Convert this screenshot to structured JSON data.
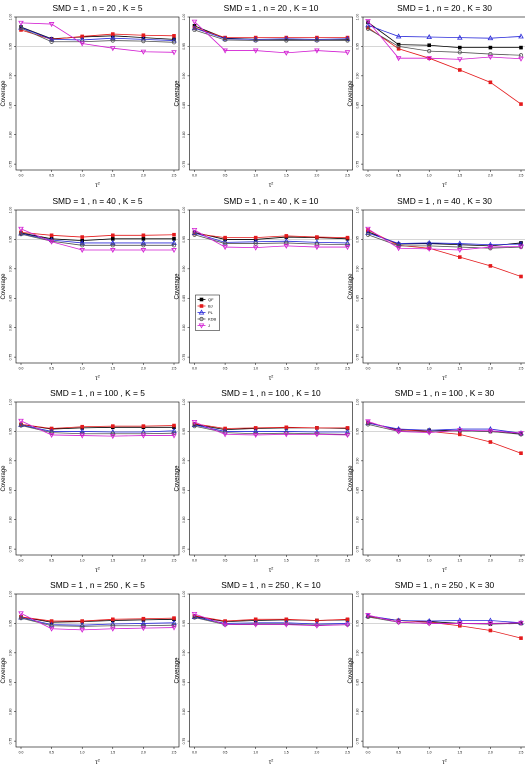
{
  "chart_data": {
    "type": "line",
    "x": [
      0.0,
      0.5,
      1.0,
      1.5,
      2.0,
      2.5
    ],
    "x_tick_labels": [
      "0.0",
      "0.5",
      "1.0",
      "1.5",
      "2.0",
      "2.5"
    ],
    "y_ticks": [
      0.75,
      0.8,
      0.85,
      0.9,
      0.95,
      1.0
    ],
    "y_tick_labels": [
      "0.75",
      "0.80",
      "0.85",
      "0.90",
      "0.95",
      "1.00"
    ],
    "ylim": [
      0.74,
      1.0
    ],
    "xlabel": "τ",
    "xlabel_sup": "2",
    "ylabel": "Coverage",
    "reference_line": 0.95,
    "legend": {
      "panel": 4,
      "entries": [
        {
          "label": "QF",
          "color": "#000000",
          "marker": "square"
        },
        {
          "label": "BJ",
          "color": "#e41a1c",
          "marker": "square"
        },
        {
          "label": "PL",
          "color": "#2b2bd9",
          "marker": "triangle-up"
        },
        {
          "label": "KDB",
          "color": "#555555",
          "marker": "circle"
        },
        {
          "label": "J",
          "color": "#d21fd2",
          "marker": "triangle-down"
        }
      ]
    },
    "panels": [
      {
        "title": "SMD = 1 , n = 20 , K = 5",
        "series": [
          {
            "name": "QF",
            "values": [
              0.983,
              0.963,
              0.966,
              0.968,
              0.965,
              0.962
            ]
          },
          {
            "name": "BJ",
            "values": [
              0.978,
              0.962,
              0.967,
              0.971,
              0.969,
              0.968
            ]
          },
          {
            "name": "PL",
            "values": [
              0.982,
              0.962,
              0.961,
              0.964,
              0.962,
              0.96
            ]
          },
          {
            "name": "KDB",
            "values": [
              0.981,
              0.958,
              0.958,
              0.96,
              0.959,
              0.957
            ]
          },
          {
            "name": "J",
            "values": [
              0.99,
              0.988,
              0.955,
              0.947,
              0.941,
              0.94
            ]
          }
        ]
      },
      {
        "title": "SMD = 1 , n = 20 , K = 10",
        "series": [
          {
            "name": "QF",
            "values": [
              0.985,
              0.964,
              0.962,
              0.962,
              0.962,
              0.962
            ]
          },
          {
            "name": "BJ",
            "values": [
              0.982,
              0.965,
              0.965,
              0.965,
              0.965,
              0.965
            ]
          },
          {
            "name": "PL",
            "values": [
              0.981,
              0.963,
              0.962,
              0.963,
              0.962,
              0.963
            ]
          },
          {
            "name": "KDB",
            "values": [
              0.978,
              0.961,
              0.96,
              0.96,
              0.96,
              0.96
            ]
          },
          {
            "name": "J",
            "values": [
              0.992,
              0.943,
              0.943,
              0.939,
              0.943,
              0.94
            ]
          }
        ]
      },
      {
        "title": "SMD = 1 , n = 20 , K = 30",
        "series": [
          {
            "name": "QF",
            "values": [
              0.991,
              0.953,
              0.952,
              0.948,
              0.948,
              0.948
            ]
          },
          {
            "name": "BJ",
            "values": [
              0.982,
              0.946,
              0.93,
              0.91,
              0.889,
              0.852
            ]
          },
          {
            "name": "PL",
            "values": [
              0.986,
              0.967,
              0.966,
              0.965,
              0.964,
              0.967
            ]
          },
          {
            "name": "KDB",
            "values": [
              0.98,
              0.95,
              0.942,
              0.94,
              0.937,
              0.935
            ]
          },
          {
            "name": "J",
            "values": [
              0.993,
              0.93,
              0.93,
              0.928,
              0.932,
              0.929
            ]
          }
        ]
      },
      {
        "title": "SMD = 1 , n = 40 , K = 5",
        "series": [
          {
            "name": "QF",
            "values": [
              0.961,
              0.951,
              0.948,
              0.951,
              0.951,
              0.951
            ]
          },
          {
            "name": "BJ",
            "values": [
              0.962,
              0.957,
              0.954,
              0.957,
              0.957,
              0.958
            ]
          },
          {
            "name": "PL",
            "values": [
              0.96,
              0.949,
              0.944,
              0.944,
              0.944,
              0.944
            ]
          },
          {
            "name": "KDB",
            "values": [
              0.959,
              0.947,
              0.94,
              0.94,
              0.94,
              0.94
            ]
          },
          {
            "name": "J",
            "values": [
              0.968,
              0.946,
              0.932,
              0.932,
              0.932,
              0.932
            ]
          }
        ]
      },
      {
        "title": "SMD = 1 , n = 40 , K = 10",
        "series": [
          {
            "name": "QF",
            "values": [
              0.962,
              0.95,
              0.95,
              0.954,
              0.953,
              0.951
            ]
          },
          {
            "name": "BJ",
            "values": [
              0.96,
              0.953,
              0.953,
              0.956,
              0.954,
              0.953
            ]
          },
          {
            "name": "PL",
            "values": [
              0.961,
              0.945,
              0.946,
              0.947,
              0.945,
              0.944
            ]
          },
          {
            "name": "KDB",
            "values": [
              0.958,
              0.943,
              0.943,
              0.944,
              0.942,
              0.941
            ]
          },
          {
            "name": "J",
            "values": [
              0.966,
              0.937,
              0.936,
              0.939,
              0.937,
              0.937
            ]
          }
        ]
      },
      {
        "title": "SMD = 1 , n = 40 , K = 30",
        "series": [
          {
            "name": "QF",
            "values": [
              0.963,
              0.942,
              0.943,
              0.941,
              0.939,
              0.944
            ]
          },
          {
            "name": "BJ",
            "values": [
              0.966,
              0.94,
              0.935,
              0.92,
              0.905,
              0.887
            ]
          },
          {
            "name": "PL",
            "values": [
              0.961,
              0.943,
              0.944,
              0.943,
              0.941,
              0.942
            ]
          },
          {
            "name": "KDB",
            "values": [
              0.958,
              0.939,
              0.939,
              0.937,
              0.935,
              0.937
            ]
          },
          {
            "name": "J",
            "values": [
              0.968,
              0.935,
              0.934,
              0.932,
              0.937,
              0.938
            ]
          }
        ]
      },
      {
        "title": "SMD = 1 , n = 100 , K = 5",
        "series": [
          {
            "name": "QF",
            "values": [
              0.962,
              0.954,
              0.956,
              0.957,
              0.957,
              0.957
            ]
          },
          {
            "name": "BJ",
            "values": [
              0.962,
              0.955,
              0.958,
              0.959,
              0.959,
              0.96
            ]
          },
          {
            "name": "PL",
            "values": [
              0.961,
              0.95,
              0.95,
              0.949,
              0.949,
              0.951
            ]
          },
          {
            "name": "KDB",
            "values": [
              0.96,
              0.948,
              0.946,
              0.946,
              0.946,
              0.947
            ]
          },
          {
            "name": "J",
            "values": [
              0.968,
              0.944,
              0.943,
              0.942,
              0.943,
              0.943
            ]
          }
        ]
      },
      {
        "title": "SMD = 1 , n = 100 , K = 10",
        "series": [
          {
            "name": "QF",
            "values": [
              0.962,
              0.953,
              0.955,
              0.956,
              0.956,
              0.955
            ]
          },
          {
            "name": "BJ",
            "values": [
              0.963,
              0.955,
              0.956,
              0.957,
              0.956,
              0.956
            ]
          },
          {
            "name": "PL",
            "values": [
              0.961,
              0.95,
              0.95,
              0.95,
              0.949,
              0.949
            ]
          },
          {
            "name": "KDB",
            "values": [
              0.959,
              0.948,
              0.946,
              0.947,
              0.946,
              0.945
            ]
          },
          {
            "name": "J",
            "values": [
              0.966,
              0.945,
              0.944,
              0.945,
              0.945,
              0.944
            ]
          }
        ]
      },
      {
        "title": "SMD = 1 , n = 100 , K = 30",
        "series": [
          {
            "name": "QF",
            "values": [
              0.965,
              0.952,
              0.952,
              0.951,
              0.95,
              0.946
            ]
          },
          {
            "name": "BJ",
            "values": [
              0.965,
              0.953,
              0.95,
              0.945,
              0.932,
              0.913
            ]
          },
          {
            "name": "PL",
            "values": [
              0.964,
              0.954,
              0.952,
              0.954,
              0.954,
              0.947
            ]
          },
          {
            "name": "KDB",
            "values": [
              0.962,
              0.95,
              0.949,
              0.951,
              0.95,
              0.945
            ]
          },
          {
            "name": "J",
            "values": [
              0.967,
              0.95,
              0.948,
              0.952,
              0.951,
              0.947
            ]
          }
        ]
      },
      {
        "title": "SMD = 1 , n = 250 , K = 5",
        "series": [
          {
            "name": "QF",
            "values": [
              0.961,
              0.952,
              0.953,
              0.955,
              0.956,
              0.957
            ]
          },
          {
            "name": "BJ",
            "values": [
              0.961,
              0.954,
              0.954,
              0.957,
              0.958,
              0.959
            ]
          },
          {
            "name": "PL",
            "values": [
              0.96,
              0.948,
              0.947,
              0.949,
              0.95,
              0.951
            ]
          },
          {
            "name": "KDB",
            "values": [
              0.959,
              0.946,
              0.945,
              0.946,
              0.946,
              0.947
            ]
          },
          {
            "name": "J",
            "values": [
              0.967,
              0.941,
              0.939,
              0.941,
              0.942,
              0.943
            ]
          }
        ]
      },
      {
        "title": "SMD = 1 , n = 250 , K = 10",
        "series": [
          {
            "name": "QF",
            "values": [
              0.962,
              0.953,
              0.955,
              0.956,
              0.955,
              0.956
            ]
          },
          {
            "name": "BJ",
            "values": [
              0.963,
              0.954,
              0.957,
              0.957,
              0.955,
              0.957
            ]
          },
          {
            "name": "PL",
            "values": [
              0.961,
              0.95,
              0.951,
              0.951,
              0.949,
              0.95
            ]
          },
          {
            "name": "KDB",
            "values": [
              0.96,
              0.948,
              0.949,
              0.949,
              0.947,
              0.948
            ]
          },
          {
            "name": "J",
            "values": [
              0.966,
              0.948,
              0.948,
              0.948,
              0.946,
              0.948
            ]
          }
        ]
      },
      {
        "title": "SMD = 1 , n = 250 , K = 30",
        "series": [
          {
            "name": "QF",
            "values": [
              0.962,
              0.955,
              0.953,
              0.95,
              0.949,
              0.95
            ]
          },
          {
            "name": "BJ",
            "values": [
              0.962,
              0.955,
              0.952,
              0.946,
              0.938,
              0.925
            ]
          },
          {
            "name": "PL",
            "values": [
              0.963,
              0.955,
              0.954,
              0.955,
              0.955,
              0.951
            ]
          },
          {
            "name": "KDB",
            "values": [
              0.961,
              0.952,
              0.95,
              0.95,
              0.95,
              0.95
            ]
          },
          {
            "name": "J",
            "values": [
              0.964,
              0.952,
              0.95,
              0.95,
              0.95,
              0.951
            ]
          }
        ]
      }
    ]
  }
}
